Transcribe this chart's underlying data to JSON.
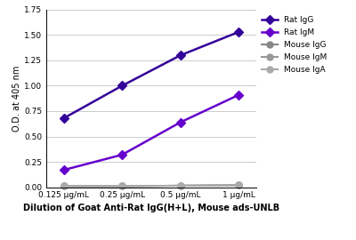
{
  "x_labels": [
    "0.125 μg/mL",
    "0.25 μg/mL",
    "0.5 μg/mL",
    "1 μg/mL"
  ],
  "x_values": [
    0,
    1,
    2,
    3
  ],
  "series": [
    {
      "label": "Rat IgG",
      "values": [
        0.68,
        1.0,
        1.3,
        1.53
      ],
      "color": "#330099",
      "marker": "D",
      "linewidth": 1.8,
      "markersize": 5
    },
    {
      "label": "Rat IgM",
      "values": [
        0.17,
        0.32,
        0.64,
        0.91
      ],
      "color": "#6600CC",
      "marker": "D",
      "linewidth": 1.8,
      "markersize": 5
    },
    {
      "label": "Mouse IgG",
      "values": [
        0.01,
        0.01,
        0.015,
        0.02
      ],
      "color": "#888888",
      "marker": "o",
      "linewidth": 1.5,
      "markersize": 5
    },
    {
      "label": "Mouse IgM",
      "values": [
        0.01,
        0.01,
        0.015,
        0.02
      ],
      "color": "#999999",
      "marker": "o",
      "linewidth": 1.5,
      "markersize": 5
    },
    {
      "label": "Mouse IgA",
      "values": [
        0.01,
        0.01,
        0.015,
        0.02
      ],
      "color": "#AAAAAA",
      "marker": "o",
      "linewidth": 1.5,
      "markersize": 5
    }
  ],
  "ylabel": "O.D. at 405 nm",
  "xlabel": "Dilution of Goat Anti-Rat IgG(H+L), Mouse ads-UNLB",
  "ylim": [
    0,
    1.75
  ],
  "yticks": [
    0.0,
    0.25,
    0.5,
    0.75,
    1.0,
    1.25,
    1.5,
    1.75
  ],
  "background_color": "#ffffff",
  "grid_color": "#cccccc"
}
